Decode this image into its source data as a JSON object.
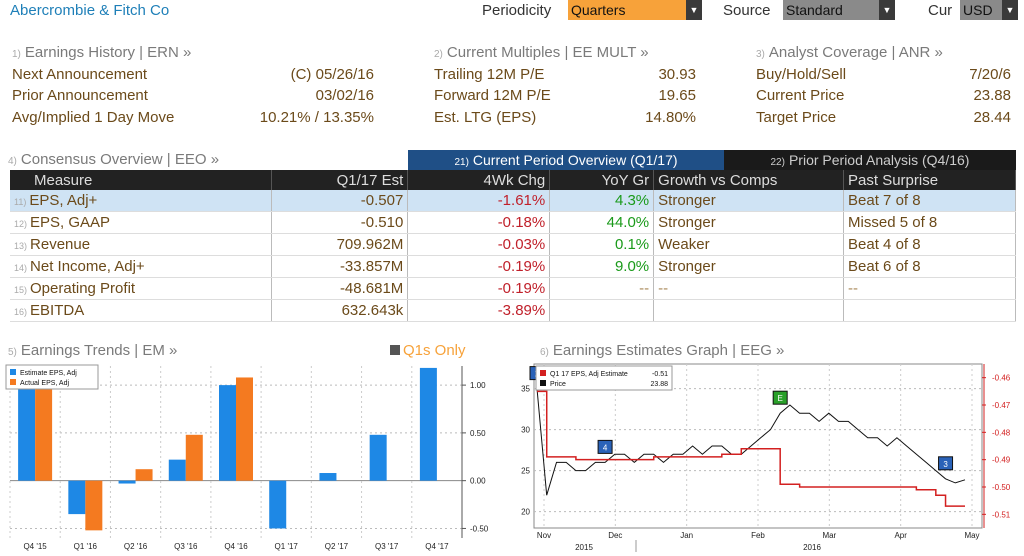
{
  "header": {
    "title": "Abercrombie & Fitch Co",
    "periodicity_label": "Periodicity",
    "periodicity_value": "Quarters",
    "source_label": "Source",
    "source_value": "Standard",
    "cur_label": "Cur",
    "cur_value": "USD"
  },
  "earnings_history": {
    "num": "1)",
    "title": "Earnings History | ERN »",
    "rows": [
      {
        "label": "Next Announcement",
        "value": "(C)  05/26/16"
      },
      {
        "label": "Prior Announcement",
        "value": "03/02/16"
      },
      {
        "label": "Avg/Implied 1 Day Move",
        "value": "10.21% / 13.35%"
      }
    ]
  },
  "current_multiples": {
    "num": "2)",
    "title": "Current Multiples | EE MULT »",
    "rows": [
      {
        "label": "Trailing 12M P/E",
        "value": "30.93"
      },
      {
        "label": "Forward 12M P/E",
        "value": "19.65"
      },
      {
        "label": "Est. LTG (EPS)",
        "value": "14.80%"
      }
    ]
  },
  "analyst_coverage": {
    "num": "3)",
    "title": "Analyst Coverage | ANR »",
    "rows": [
      {
        "label": "Buy/Hold/Sell",
        "value": "7/20/6"
      },
      {
        "label": "Current Price",
        "value": "23.88"
      },
      {
        "label": "Target Price",
        "value": "28.44"
      }
    ]
  },
  "consensus": {
    "num": "4)",
    "title": "Consensus Overview | EEO »",
    "tab_current_num": "21)",
    "tab_current": "Current Period Overview (Q1/17)",
    "tab_prior_num": "22)",
    "tab_prior": "Prior Period Analysis (Q4/16)",
    "columns": [
      "Measure",
      "Q1/17 Est",
      "4Wk Chg",
      "YoY Gr",
      "Growth vs Comps",
      "Past Surprise"
    ],
    "rows": [
      {
        "num": "11)",
        "measure": "EPS, Adj+",
        "est": "-0.507",
        "chg": "-1.61%",
        "yoy": "4.3%",
        "growth": "Stronger",
        "surprise": "Beat 7 of 8"
      },
      {
        "num": "12)",
        "measure": "EPS, GAAP",
        "est": "-0.510",
        "chg": "-0.18%",
        "yoy": "44.0%",
        "growth": "Stronger",
        "surprise": "Missed 5 of 8"
      },
      {
        "num": "13)",
        "measure": "Revenue",
        "est": "709.962M",
        "chg": "-0.03%",
        "yoy": "0.1%",
        "growth": "Weaker",
        "surprise": "Beat 4 of 8"
      },
      {
        "num": "14)",
        "measure": "Net Income, Adj+",
        "est": "-33.857M",
        "chg": "-0.19%",
        "yoy": "9.0%",
        "growth": "Stronger",
        "surprise": "Beat 6 of 8"
      },
      {
        "num": "15)",
        "measure": "Operating Profit",
        "est": "-48.681M",
        "chg": "-0.19%",
        "yoy": "--",
        "growth": "--",
        "surprise": "--"
      },
      {
        "num": "16)",
        "measure": "EBITDA",
        "est": "632.643k",
        "chg": "-3.89%",
        "yoy": "",
        "growth": "",
        "surprise": ""
      }
    ]
  },
  "earnings_trends": {
    "num": "5)",
    "title": "Earnings Trends | EM »",
    "toggle_label": "Q1s Only"
  },
  "estimates_graph": {
    "num": "6)",
    "title": "Earnings Estimates Graph | EEG »"
  },
  "chart_data": [
    {
      "type": "bar",
      "categories": [
        "Q4 '15",
        "Q1 '16",
        "Q2 '16",
        "Q3 '16",
        "Q4 '16",
        "Q1 '17",
        "Q2 '17",
        "Q3 '17",
        "Q4 '17"
      ],
      "series": [
        {
          "name": "Estimate EPS, Adj",
          "color": "#1e88e5",
          "values": [
            1.15,
            -0.35,
            -0.03,
            0.22,
            1.0,
            -0.5,
            0.08,
            0.48,
            1.18
          ]
        },
        {
          "name": "Actual EPS, Adj",
          "color": "#f47a20",
          "values": [
            1.12,
            -0.52,
            0.12,
            0.48,
            1.08,
            null,
            null,
            null,
            null
          ]
        }
      ],
      "y_ticks": [
        "1.00",
        "0.50",
        "0.00",
        "-0.50"
      ],
      "ylim": [
        -0.6,
        1.2
      ]
    },
    {
      "type": "line",
      "x_ticks": [
        "Nov",
        "Dec",
        "Jan",
        "Feb",
        "Mar",
        "Apr",
        "May"
      ],
      "x_years": [
        "2015",
        "2016"
      ],
      "left_ticks": [
        "35",
        "30",
        "25",
        "20"
      ],
      "right_ticks": [
        "-0.46",
        "-0.47",
        "-0.48",
        "-0.49",
        "-0.50",
        "-0.51"
      ],
      "legend": [
        {
          "name": "Q1 17 EPS, Adj Estimate",
          "value": "-0.51",
          "color": "#d32020"
        },
        {
          "name": "Price",
          "value": "23.88",
          "color": "#111111"
        }
      ],
      "left_ylim": [
        18,
        38
      ],
      "right_ylim": [
        -0.515,
        -0.455
      ],
      "price": [
        35,
        22,
        26,
        26,
        25,
        25,
        26,
        26,
        27,
        27,
        26,
        27,
        27,
        26,
        27,
        27,
        28,
        27,
        28,
        28,
        27,
        27,
        28,
        29,
        30,
        32,
        33,
        32,
        32,
        31,
        32,
        31,
        31,
        30,
        29,
        29,
        28,
        29,
        28,
        27,
        26,
        25,
        24,
        23.5,
        23.88
      ],
      "estimate": [
        -0.465,
        -0.489,
        -0.489,
        -0.489,
        -0.49,
        -0.49,
        -0.49,
        -0.49,
        -0.49,
        -0.49,
        -0.49,
        -0.49,
        -0.489,
        -0.489,
        -0.489,
        -0.489,
        -0.489,
        -0.489,
        -0.489,
        -0.488,
        -0.488,
        -0.486,
        -0.486,
        -0.486,
        -0.486,
        -0.499,
        -0.499,
        -0.5,
        -0.5,
        -0.5,
        -0.5,
        -0.5,
        -0.5,
        -0.5,
        -0.5,
        -0.5,
        -0.5,
        -0.5,
        -0.5,
        -0.501,
        -0.501,
        -0.503,
        -0.507,
        -0.507,
        -0.507
      ],
      "markers": [
        {
          "label": "2",
          "color": "#2a62b8",
          "at_index": 0
        },
        {
          "label": "4",
          "color": "#2a62b8",
          "at_index": 7
        },
        {
          "label": "E",
          "color": "#2aa02a",
          "at_index": 25
        },
        {
          "label": "3",
          "color": "#2a62b8",
          "at_index": 42
        }
      ]
    }
  ]
}
